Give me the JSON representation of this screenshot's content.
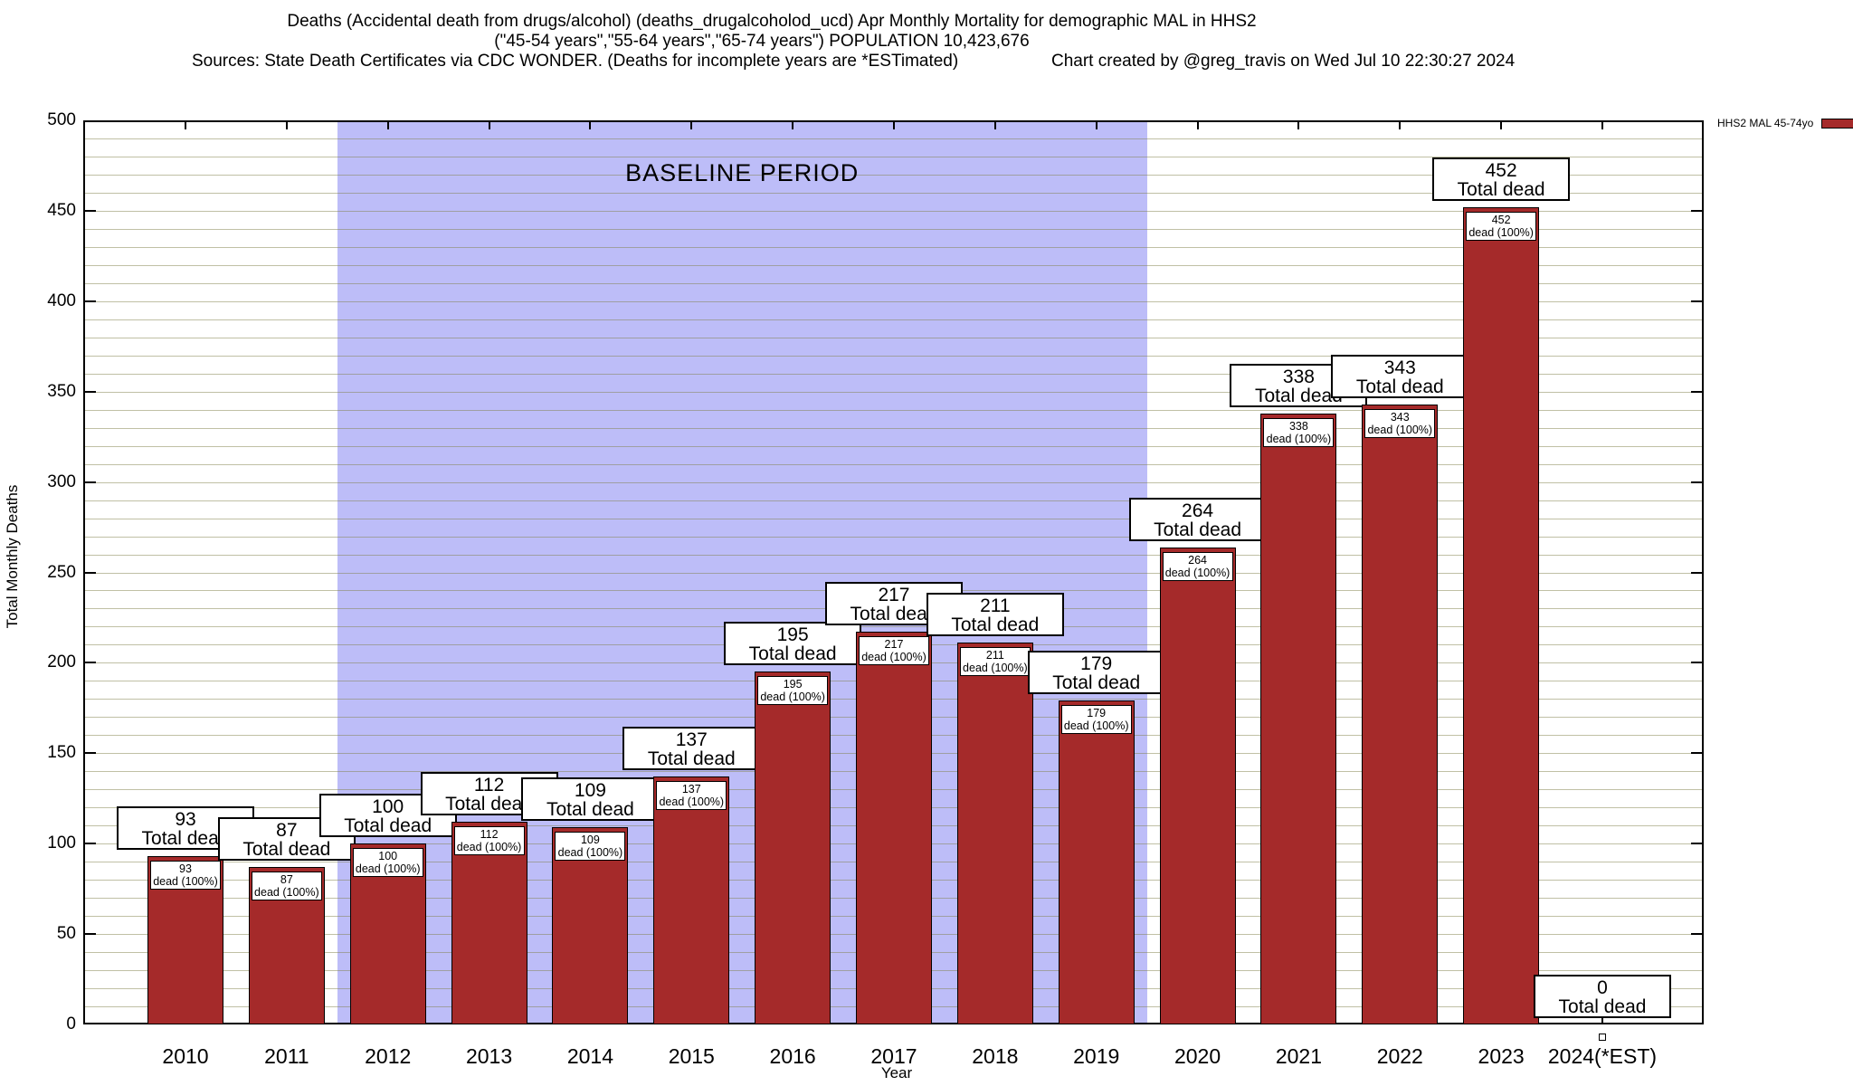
{
  "header": {
    "title_line1": "Deaths (Accidental death from drugs/alcohol) (deaths_drugalcoholod_ucd) Apr Monthly Mortality for demographic MAL in HHS2",
    "title_line2": "(\"45-54 years\",\"55-64 years\",\"65-74 years\") POPULATION 10,423,676",
    "sources": "Sources: State Death Certificates via CDC WONDER. (Deaths for incomplete years are *ESTimated)",
    "credit": "Chart created by @greg_travis on Wed Jul 10 22:30:27 2024"
  },
  "legend": {
    "label": "HHS2 MAL 45-74yo",
    "color": "#a52a2a"
  },
  "chart_data": {
    "type": "bar",
    "title": "Deaths (Accidental death from drugs/alcohol) Apr Monthly Mortality for demographic MAL in HHS2",
    "xlabel": "Year",
    "ylabel": "Total Monthly Deaths",
    "ylim": [
      0,
      500
    ],
    "yticks": [
      0,
      50,
      100,
      150,
      200,
      250,
      300,
      350,
      400,
      450,
      500
    ],
    "minor_grid_interval": 10,
    "grid": true,
    "legend_position": "top-right-outside",
    "categories": [
      "2010",
      "2011",
      "2012",
      "2013",
      "2014",
      "2015",
      "2016",
      "2017",
      "2018",
      "2019",
      "2020",
      "2021",
      "2022",
      "2023",
      "2024(*EST)"
    ],
    "values": [
      93,
      87,
      100,
      112,
      109,
      137,
      195,
      217,
      211,
      179,
      264,
      338,
      343,
      452,
      0
    ],
    "series_name": "HHS2 MAL 45-74yo",
    "bar_color": "#a52a2a",
    "baseline_label": "BASELINE PERIOD",
    "baseline_region": {
      "from_year": "2012",
      "to_year": "2019",
      "color": "#bdbdf8"
    },
    "labels": {
      "total_dead_suffix": "Total dead",
      "inner_suffix": "dead (100%)"
    }
  }
}
